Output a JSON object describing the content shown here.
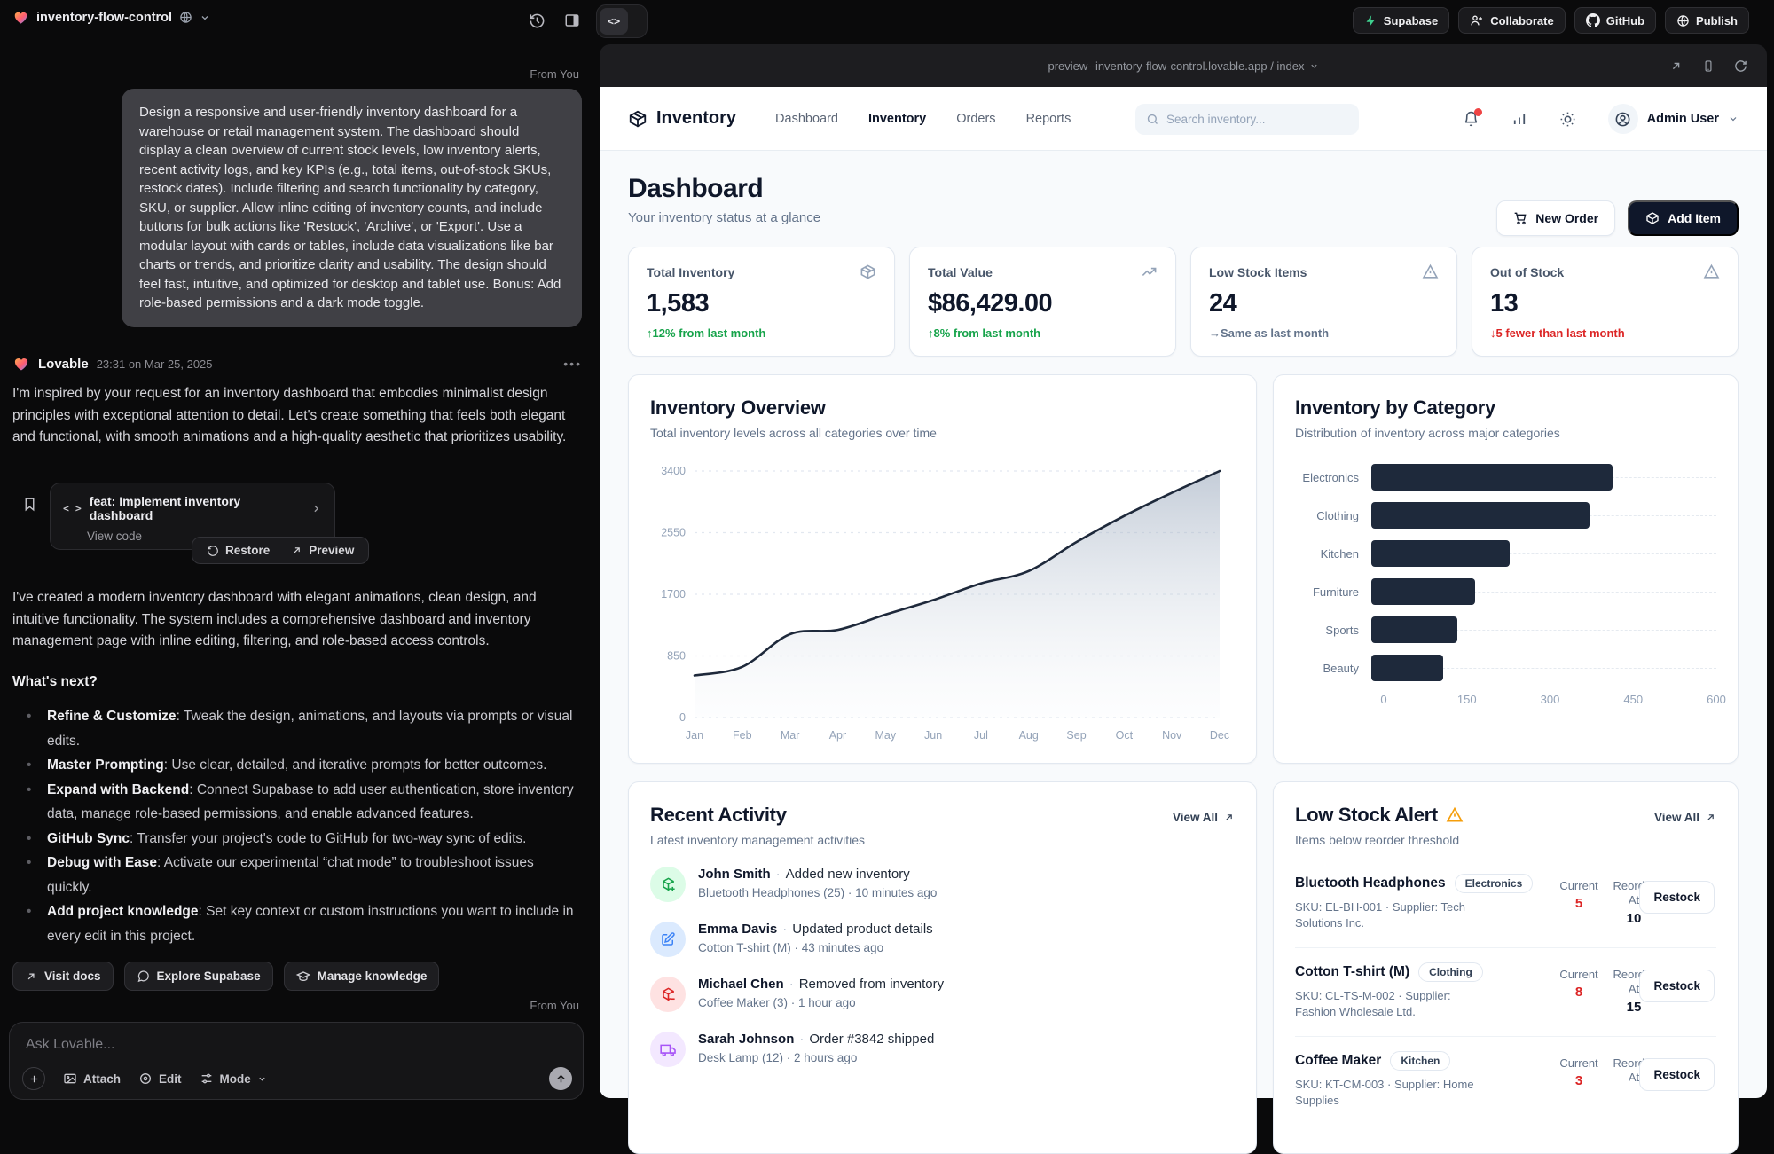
{
  "top_bar": {
    "project_name": "inventory-flow-control",
    "actions": [
      {
        "label": "Supabase",
        "icon": "supabase-bolt"
      },
      {
        "label": "Collaborate",
        "icon": "users-plus"
      },
      {
        "label": "GitHub",
        "icon": "github"
      },
      {
        "label": "Publish",
        "icon": "globe-grid"
      }
    ]
  },
  "chat": {
    "from_you_label": "From You",
    "user_prompt": "Design a responsive and user-friendly inventory dashboard for a warehouse or retail management system. The dashboard should display a clean overview of current stock levels, low inventory alerts, recent activity logs, and key KPIs (e.g., total items, out-of-stock SKUs, restock dates). Include filtering and search functionality by category, SKU, or supplier. Allow inline editing of inventory counts, and include buttons for bulk actions like 'Restock', 'Archive', or 'Export'. Use a modular layout with cards or tables, include data visualizations like bar charts or trends, and prioritize clarity and usability. The design should feel fast, intuitive, and optimized for desktop and tablet use. Bonus: Add role-based permissions and a dark mode toggle.",
    "assistant": {
      "name": "Lovable",
      "timestamp": "23:31 on Mar 25, 2025",
      "intro": "I'm inspired by your request for an inventory dashboard that embodies minimalist design principles with exceptional attention to detail. Let's create something that feels both elegant and functional, with smooth animations and a high-quality aesthetic that prioritizes usability.",
      "version_card": {
        "title": "feat: Implement inventory dashboard",
        "subtitle": "View code"
      },
      "restore_label": "Restore",
      "preview_label": "Preview",
      "summary": "I've created a modern inventory dashboard with elegant animations, clean design, and intuitive functionality. The system includes a comprehensive dashboard and inventory management page with inline editing, filtering, and role-based access controls.",
      "whats_next_heading": "What's next?",
      "bullets": [
        {
          "bold": "Refine & Customize",
          "text": ": Tweak the design, animations, and layouts via prompts or visual edits."
        },
        {
          "bold": "Master Prompting",
          "text": ": Use clear, detailed, and iterative prompts for better outcomes."
        },
        {
          "bold": "Expand with Backend",
          "text": ": Connect Supabase to add user authentication, store inventory data, manage role-based permissions, and enable advanced features."
        },
        {
          "bold": "GitHub Sync",
          "text": ": Transfer your project's code to GitHub for two-way sync of edits."
        },
        {
          "bold": "Debug with Ease",
          "text": ": Activate our experimental “chat mode” to troubleshoot issues quickly."
        },
        {
          "bold": "Add project knowledge",
          "text": ": Set key context or custom instructions you want to include in every edit in this project."
        }
      ]
    },
    "footer_buttons": [
      {
        "label": "Visit docs",
        "icon": "arrow-up-right"
      },
      {
        "label": "Explore Supabase",
        "icon": "chat-bubble"
      },
      {
        "label": "Manage knowledge",
        "icon": "graduation-cap"
      }
    ],
    "composer": {
      "placeholder": "Ask Lovable...",
      "attach_label": "Attach",
      "edit_label": "Edit",
      "mode_label": "Mode"
    }
  },
  "preview": {
    "url": "preview--inventory-flow-control.lovable.app / index",
    "app": {
      "brand": "Inventory",
      "nav": [
        {
          "label": "Dashboard",
          "active": false
        },
        {
          "label": "Inventory",
          "active": true
        },
        {
          "label": "Orders",
          "active": false
        },
        {
          "label": "Reports",
          "active": false
        }
      ],
      "search_placeholder": "Search inventory...",
      "user_name": "Admin User",
      "page_title": "Dashboard",
      "page_subtitle": "Your inventory status at a glance",
      "new_order_label": "New Order",
      "add_item_label": "Add Item",
      "kpis": [
        {
          "label": "Total Inventory",
          "icon": "package",
          "value": "1,583",
          "delta": "↑12% from last month",
          "delta_color": "#16a34a"
        },
        {
          "label": "Total Value",
          "icon": "trending-up",
          "value": "$86,429.00",
          "delta": "↑8% from last month",
          "delta_color": "#16a34a"
        },
        {
          "label": "Low Stock Items",
          "icon": "alert-triangle",
          "value": "24",
          "delta": "→Same as last month",
          "delta_color": "#64748b"
        },
        {
          "label": "Out of Stock",
          "icon": "alert-triangle",
          "value": "13",
          "delta": "↓5 fewer than last month",
          "delta_color": "#dc2626"
        }
      ],
      "activity": {
        "title": "Recent Activity",
        "subtitle": "Latest inventory management activities",
        "view_all": "View All",
        "items": [
          {
            "icon": "package-plus",
            "color": "green",
            "name": "John Smith",
            "action": "Added new inventory",
            "detail": "Bluetooth Headphones (25) · 10 minutes ago"
          },
          {
            "icon": "edit-square",
            "color": "blue",
            "name": "Emma Davis",
            "action": "Updated product details",
            "detail": "Cotton T-shirt (M) · 43 minutes ago"
          },
          {
            "icon": "package-minus",
            "color": "red",
            "name": "Michael Chen",
            "action": "Removed from inventory",
            "detail": "Coffee Maker (3) · 1 hour ago"
          },
          {
            "icon": "truck",
            "color": "purple",
            "name": "Sarah Johnson",
            "action": "Order #3842 shipped",
            "detail": "Desk Lamp (12) · 2 hours ago"
          }
        ]
      },
      "low_stock": {
        "title": "Low Stock Alert",
        "subtitle": "Items below reorder threshold",
        "view_all": "View All",
        "current_label": "Current",
        "reorder_label": "Reorder At",
        "restock_label": "Restock",
        "items": [
          {
            "name": "Bluetooth Headphones",
            "category": "Electronics",
            "sku_line": "SKU: EL-BH-001 · Supplier: Tech Solutions Inc.",
            "current": "5",
            "reorder_at": "10"
          },
          {
            "name": "Cotton T-shirt (M)",
            "category": "Clothing",
            "sku_line": "SKU: CL-TS-M-002 · Supplier: Fashion Wholesale Ltd.",
            "current": "8",
            "reorder_at": "15"
          },
          {
            "name": "Coffee Maker",
            "category": "Kitchen",
            "sku_line": "SKU: KT-CM-003 · Supplier: Home Supplies",
            "current": "3",
            "reorder_at": ""
          }
        ]
      }
    }
  },
  "chart_data": [
    {
      "id": "inventory_overview",
      "type": "area",
      "title": "Inventory Overview",
      "subtitle": "Total inventory levels across all categories over time",
      "x": [
        "Jan",
        "Feb",
        "Mar",
        "Apr",
        "May",
        "Jun",
        "Jul",
        "Aug",
        "Sep",
        "Oct",
        "Nov",
        "Dec"
      ],
      "values": [
        580,
        700,
        1150,
        1210,
        1420,
        1620,
        1850,
        2020,
        2420,
        2780,
        3100,
        3400
      ],
      "yticks": [
        0,
        850,
        1700,
        2550,
        3400
      ],
      "ylim": [
        0,
        3400
      ],
      "line_color": "#1e293b",
      "grid": "dashed-horizontal",
      "legend": "none"
    },
    {
      "id": "inventory_by_category",
      "type": "bar",
      "orientation": "horizontal",
      "title": "Inventory by Category",
      "subtitle": "Distribution of inventory across major categories",
      "categories": [
        "Electronics",
        "Clothing",
        "Kitchen",
        "Furniture",
        "Sports",
        "Beauty"
      ],
      "values": [
        420,
        380,
        240,
        180,
        150,
        125
      ],
      "xticks": [
        0,
        150,
        300,
        450,
        600
      ],
      "xlim": [
        0,
        600
      ],
      "bar_color": "#1e293b",
      "legend": "none"
    }
  ]
}
